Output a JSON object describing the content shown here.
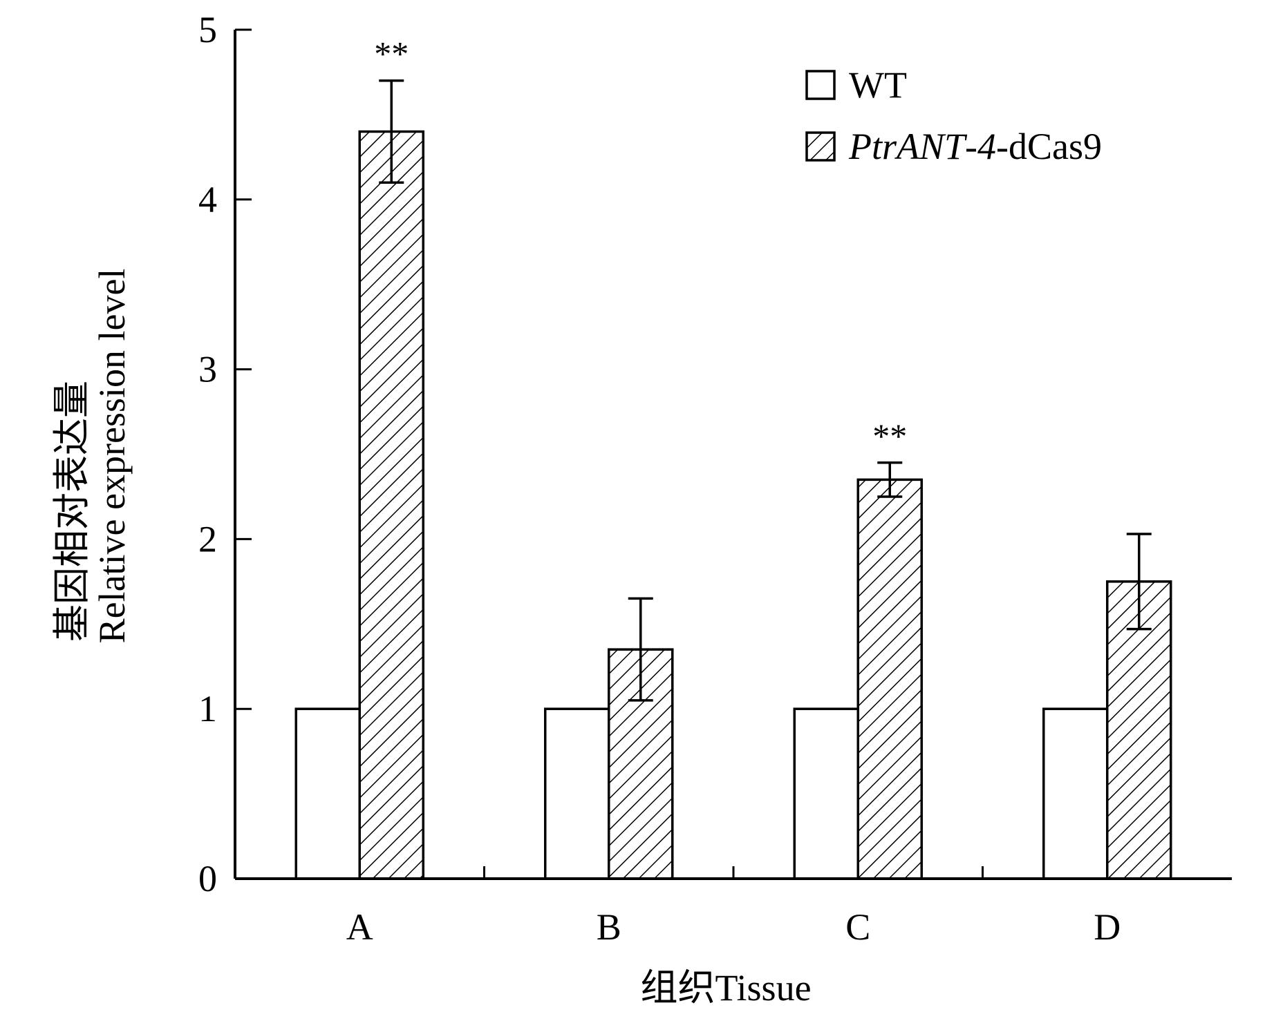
{
  "chart_data": {
    "type": "bar",
    "categories": [
      "A",
      "B",
      "C",
      "D"
    ],
    "series": [
      {
        "name": "WT",
        "values": [
          1,
          1,
          1,
          1
        ],
        "errors": [
          0,
          0,
          0,
          0
        ],
        "fill": "#ffffff",
        "pattern": "none"
      },
      {
        "name": "PtrANT-4-dCas9",
        "name_parts": [
          {
            "text": "PtrANT",
            "italic": true
          },
          {
            "text": "-",
            "italic": false
          },
          {
            "text": "4",
            "italic": true
          },
          {
            "text": "-dCas9",
            "italic": false
          }
        ],
        "values": [
          4.4,
          1.35,
          2.35,
          1.75
        ],
        "errors": [
          0.3,
          0.3,
          0.1,
          0.28
        ],
        "fill": "#ffffff",
        "pattern": "diagonal-hatch"
      }
    ],
    "significance": [
      {
        "category": "A",
        "series": "PtrANT-4-dCas9",
        "label": "**"
      },
      {
        "category": "C",
        "series": "PtrANT-4-dCas9",
        "label": "**"
      }
    ],
    "ylim": [
      0,
      5
    ],
    "yticks": [
      0,
      1,
      2,
      3,
      4,
      5
    ],
    "ylabel_cn": "基因相对表达量",
    "ylabel_en": "Relative expression level",
    "xlabel": "组织Tissue",
    "legend_position": "top-right",
    "grid": false
  }
}
